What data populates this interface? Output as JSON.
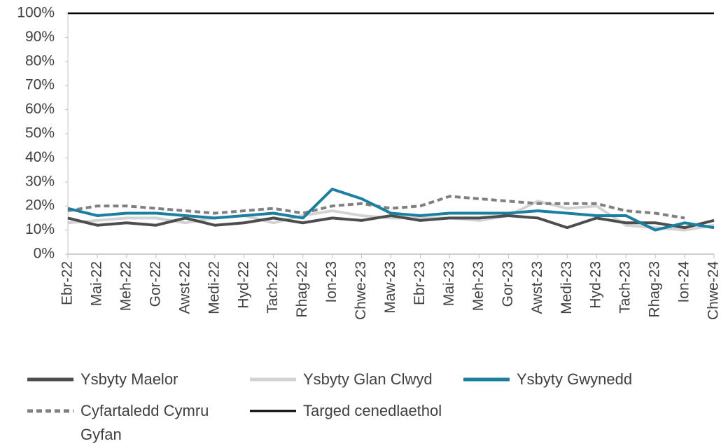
{
  "chart_data": {
    "type": "line",
    "categories": [
      "Ebr-22",
      "Mai-22",
      "Meh-22",
      "Gor-22",
      "Awst-22",
      "Medi-22",
      "Hyd-22",
      "Tach-22",
      "Rhag-22",
      "Ion-23",
      "Chwe-23",
      "Maw-23",
      "Ebr-23",
      "Mai-23",
      "Meh-23",
      "Gor-23",
      "Awst-23",
      "Medi-23",
      "Hyd-23",
      "Tach-23",
      "Rhag-23",
      "Ion-24",
      "Chwe-24"
    ],
    "series": [
      {
        "name": "Ysbyty Maelor",
        "color": "#4d4d4d",
        "dashed": false,
        "values": [
          15,
          12,
          13,
          12,
          15,
          12,
          13,
          15,
          13,
          15,
          14,
          16,
          14,
          15,
          15,
          16,
          15,
          11,
          15,
          13,
          13,
          11,
          14
        ]
      },
      {
        "name": "Ysbyty Glan Clwyd",
        "color": "#d3d3d3",
        "dashed": false,
        "values": [
          13,
          14,
          15,
          15,
          13,
          15,
          16,
          13,
          16,
          18,
          16,
          15,
          15,
          15,
          14,
          16,
          22,
          19,
          20,
          12,
          11,
          10,
          12
        ]
      },
      {
        "name": "Ysbyty Gwynedd",
        "color": "#1a7fa0",
        "dashed": false,
        "values": [
          19,
          16,
          17,
          17,
          16,
          15,
          16,
          17,
          15,
          27,
          23,
          17,
          16,
          17,
          17,
          17,
          18,
          17,
          16,
          16,
          10,
          13,
          11
        ]
      },
      {
        "name": "Cyfartaledd Cymru Gyfan",
        "color": "#808080",
        "dashed": true,
        "values": [
          18,
          20,
          20,
          19,
          18,
          17,
          18,
          19,
          17,
          20,
          21,
          19,
          20,
          24,
          23,
          22,
          21,
          21,
          21,
          18,
          17,
          15,
          null
        ]
      },
      {
        "name": "Targed cenedlaethol",
        "color": "#000000",
        "dashed": false,
        "values": [
          100,
          100,
          100,
          100,
          100,
          100,
          100,
          100,
          100,
          100,
          100,
          100,
          100,
          100,
          100,
          100,
          100,
          100,
          100,
          100,
          100,
          100,
          100
        ]
      }
    ],
    "ylim": [
      0,
      100
    ],
    "yticks": [
      {
        "value": 0,
        "label": "0%"
      },
      {
        "value": 10,
        "label": "10%"
      },
      {
        "value": 20,
        "label": "20%"
      },
      {
        "value": 30,
        "label": "30%"
      },
      {
        "value": 40,
        "label": "40%"
      },
      {
        "value": 50,
        "label": "50%"
      },
      {
        "value": 60,
        "label": "60%"
      },
      {
        "value": 70,
        "label": "70%"
      },
      {
        "value": 80,
        "label": "80%"
      },
      {
        "value": 90,
        "label": "90%"
      },
      {
        "value": 100,
        "label": "100%"
      }
    ],
    "grid": false,
    "legend": "bottom"
  }
}
